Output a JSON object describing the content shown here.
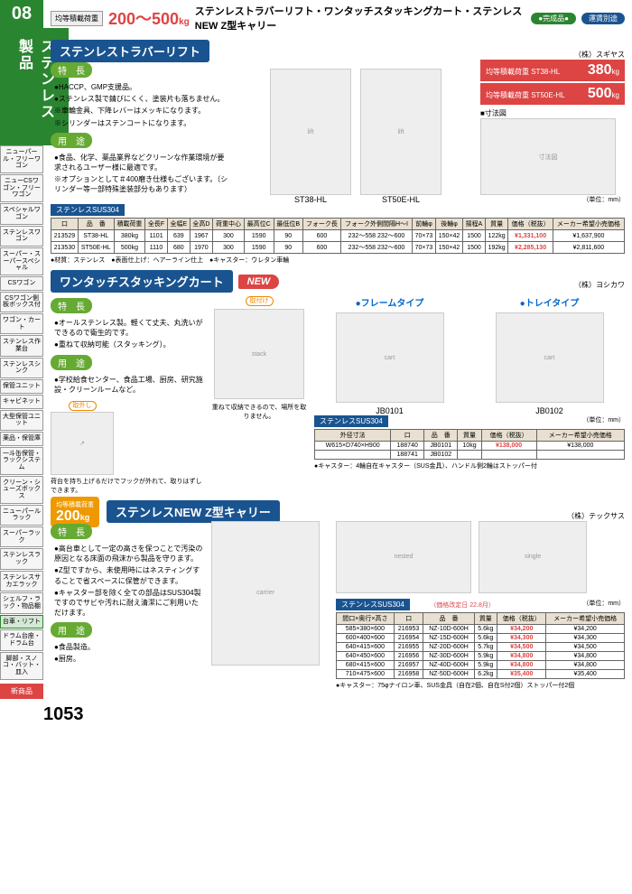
{
  "sidebar": {
    "category_number": "08",
    "category_label": "ステンレス製品",
    "nav_items": [
      "ニューパール・フリーワゴン",
      "ニューCSワゴン・フリーワゴン",
      "スペシャルワゴン",
      "ステンレスワゴン",
      "スーパー・スーパースペシャル",
      "CSワゴン",
      "CSワゴン側板ボックス付",
      "ワゴン・カート",
      "ステンレス作業台",
      "ステンレスシンク",
      "保管ユニット",
      "キャビネット",
      "大型保管ユニット",
      "薬品・保管庫",
      "一斗缶保管・ラックシステム",
      "クリーン・シューズボックス",
      "ニューパールラック",
      "スーパーラック",
      "ステンレスラック",
      "ステンレスサカエラック",
      "シェルフ・ラック・物品棚",
      "台車・リフト",
      "ドラム台座・ドラム台",
      "脚部・スノコ・バット・皿入"
    ],
    "nav_new": "新商品"
  },
  "header": {
    "load_label": "均等積載荷重",
    "load_range": "200〜500",
    "load_unit": "kg",
    "title": "ステンレストラバーリフト・ワンタッチスタッキングカート・ステンレスNEW Z型キャリー",
    "pill1": "●完成品●",
    "pill2": "運賃別途"
  },
  "sec1": {
    "title": "ステンレストラバーリフト",
    "maker": "（株）スギヤス",
    "features_tag": "特　長",
    "features": [
      "●HACCP、GMP支援品。",
      "●ステンレス製で錆びにくく、塗装片も落ちません。",
      "※車輪金具、下降レバーはメッキになります。",
      "※シリンダーはステンコートになります。"
    ],
    "use_tag": "用　途",
    "uses": [
      "●食品、化学、薬品業界などクリーンな作業環境が要求されるユーザー様に最適です。",
      "※オプションとして＃400磨き仕様もございます。（シリンダー等一部特殊塗装部分もあります）"
    ],
    "image_labels": [
      "ST38-HL",
      "ST50E-HL"
    ],
    "load_boxes": [
      {
        "sub": "均等積載荷重 ST38-HL",
        "val": "380",
        "unit": "kg"
      },
      {
        "sub": "均等積載荷重 ST50E-HL",
        "val": "500",
        "unit": "kg"
      }
    ],
    "diagram_label": "■寸法図",
    "unit": "（単位：mm）",
    "material": "ステンレスSUS304",
    "table": {
      "headers": [
        "口",
        "品　番",
        "積載荷重",
        "全長F",
        "全幅E",
        "全高D",
        "荷重中心",
        "最高位C",
        "最低位B",
        "フォーク長",
        "フォーク外側間隔H〜I",
        "前輪φ",
        "後輪φ",
        "揚程A",
        "質量",
        "価格（税抜）",
        "メーカー希望小売価格"
      ],
      "rows": [
        [
          "213529",
          "ST38-HL",
          "380kg",
          "1101",
          "639",
          "1967",
          "300",
          "1590",
          "90",
          "600",
          "232〜558 232〜600",
          "70×73",
          "150×42",
          "1500",
          "122kg",
          "¥1,331,100",
          "¥1,637,900"
        ],
        [
          "213530",
          "ST50E-HL",
          "500kg",
          "1110",
          "680",
          "1970",
          "300",
          "1590",
          "90",
          "600",
          "232〜558 232〜600",
          "70×73",
          "150×42",
          "1500",
          "192kg",
          "¥2,285,130",
          "¥2,811,600"
        ]
      ]
    },
    "footnote": "●材質：ステンレス　●表面仕上げ：ヘアーライン仕上　●キャスター：ウレタン車輪"
  },
  "sec2": {
    "title": "ワンタッチスタッキングカート",
    "new": "NEW",
    "maker": "（株）ヨシカワ",
    "features_tag": "特　長",
    "features": [
      "●オールステンレス製。軽くて丈夫、丸洗いができるので衛生的です。",
      "●重ねて収納可能（スタッキング）。"
    ],
    "use_tag": "用　途",
    "uses": [
      "●学校給食センター、食品工場、厨房、研究施設・クリーンルームなど。"
    ],
    "action_labels": [
      "取外し",
      "取付け"
    ],
    "action_note": "荷台を持ち上げるだけでフックが外れて、取りはずしできます。",
    "stack_note": "重ねて収納できるので、場所を取りません。",
    "subtypes": [
      "●フレームタイプ",
      "●トレイタイプ"
    ],
    "image_labels": [
      "JB0101",
      "JB0102"
    ],
    "material": "ステンレスSUS304",
    "unit": "（単位：mm）",
    "table": {
      "headers": [
        "外径寸法",
        "口",
        "品　番",
        "質量",
        "価格（税抜）",
        "メーカー希望小売価格"
      ],
      "rows": [
        [
          "W615×D740×H900",
          "188740",
          "JB0101",
          "10kg",
          "¥138,000",
          "¥138,000"
        ],
        [
          "",
          "188741",
          "JB0102",
          "",
          "",
          ""
        ]
      ]
    },
    "footnote": "●キャスター：4輪自在キャスター（SUS金具）、ハンドル側2輪はストッパー付"
  },
  "sec3": {
    "load_label": "均等積載荷重",
    "load_val": "200",
    "load_unit": "kg",
    "title": "ステンレスNEW Z型キャリー",
    "maker": "（株）テックサス",
    "features_tag": "特　長",
    "features": [
      "●高台車として一定の高さを保つことで汚染の原因となる床面の飛沫から製品を守ります。",
      "●Z型ですから、未使用時にはネスティングすることで省スペースに保管ができます。",
      "●キャスター部を除く全ての部品はSUS304製ですのでサビや汚れに耐え清潔にご利用いただけます。"
    ],
    "use_tag": "用　途",
    "uses": [
      "●食品製造。",
      "●厨房。"
    ],
    "material": "ステンレスSUS304",
    "price_note": "（価格改定日 22.8月）",
    "unit": "（単位：mm）",
    "table": {
      "headers": [
        "間口×奥行×高さ",
        "口",
        "品　番",
        "質量",
        "価格（税抜）",
        "メーカー希望小売価格"
      ],
      "rows": [
        [
          "585×380×600",
          "216953",
          "NZ-10D-600H",
          "5.6kg",
          "¥34,200",
          "¥34,200"
        ],
        [
          "600×400×600",
          "216954",
          "NZ-15D-600H",
          "5.6kg",
          "¥34,300",
          "¥34,300"
        ],
        [
          "640×415×600",
          "216955",
          "NZ-20D-600H",
          "5.7kg",
          "¥34,500",
          "¥34,500"
        ],
        [
          "640×450×600",
          "216956",
          "NZ-30D-600H",
          "5.9kg",
          "¥34,800",
          "¥34,800"
        ],
        [
          "680×415×600",
          "216957",
          "NZ-40D-600H",
          "5.9kg",
          "¥34,800",
          "¥34,800"
        ],
        [
          "710×475×600",
          "216958",
          "NZ-50D-600H",
          "6.2kg",
          "¥35,400",
          "¥35,400"
        ]
      ]
    },
    "footnote": "●キャスター：75φナイロン車、SUS金具（自在2個、自在S付2個）ストッパー付2個"
  },
  "page_number": "1053"
}
